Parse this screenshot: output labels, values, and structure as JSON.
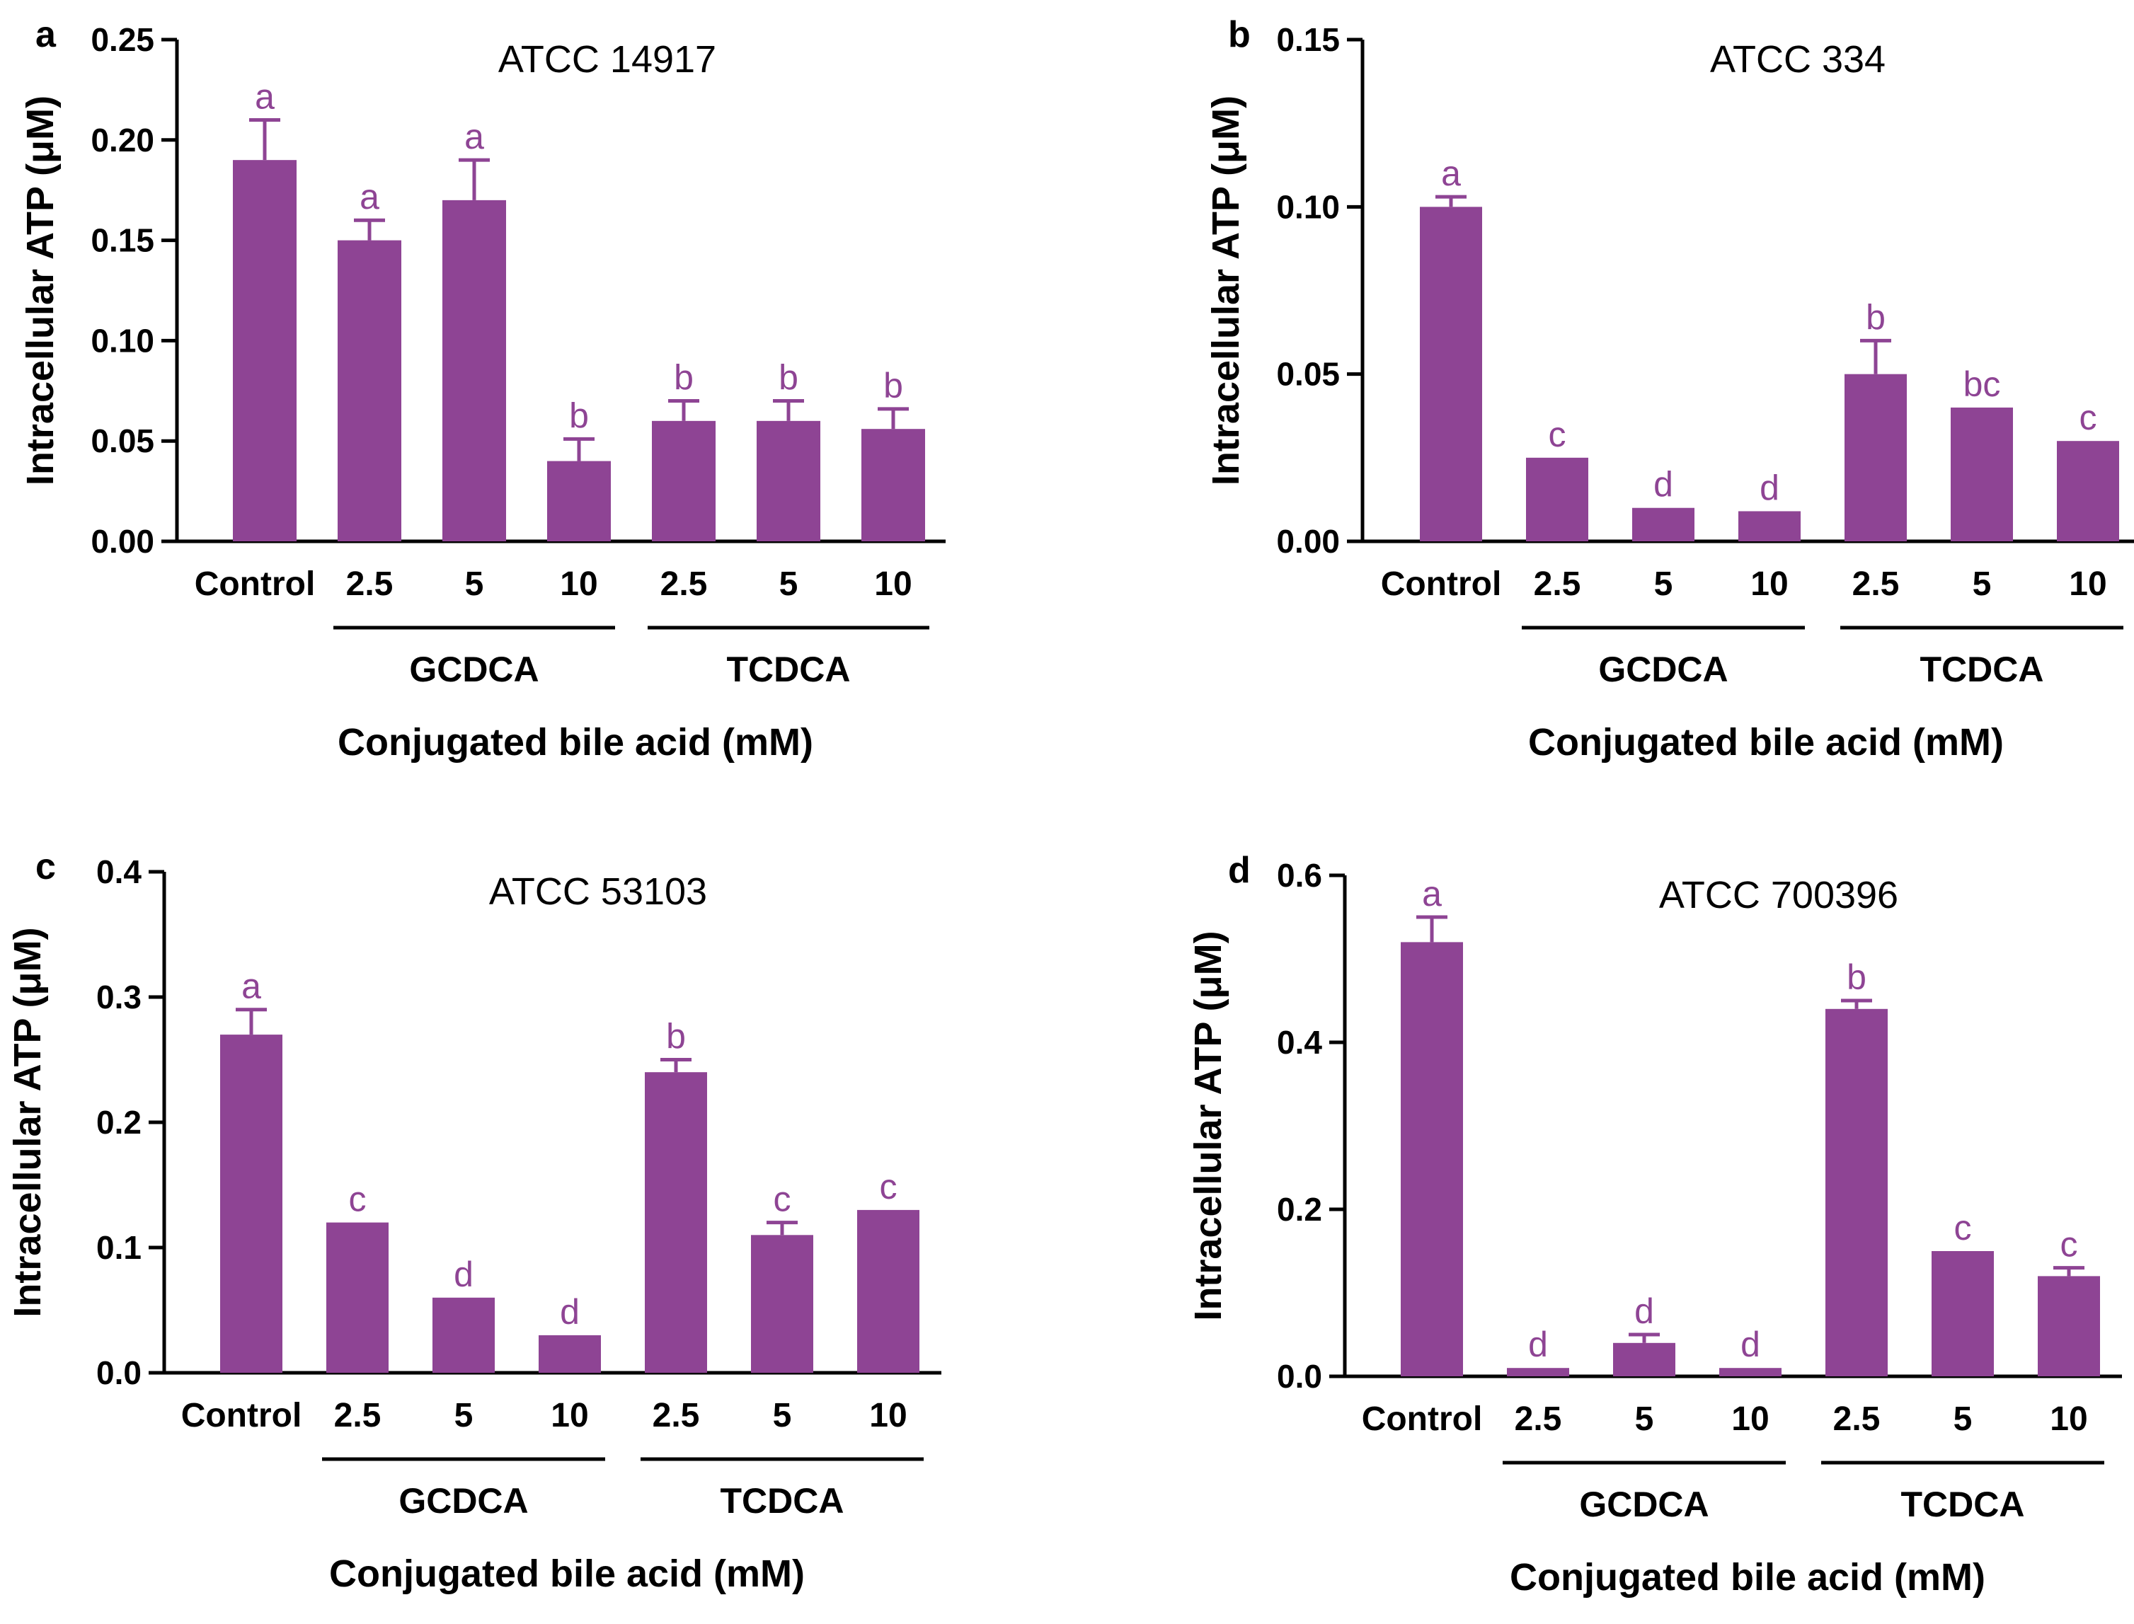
{
  "figure": {
    "bar_color": "#8e4494",
    "letter_color": "#8e4494",
    "axis_color": "#000000"
  },
  "chart_data": [
    {
      "panel": "a",
      "type": "bar",
      "title": "ATCC 14917",
      "ylabel": "Intracellular ATP (μM)",
      "xlabel": "Conjugated bile acid (mM)",
      "categories": [
        "Control",
        "2.5",
        "5",
        "10",
        "2.5",
        "5",
        "10"
      ],
      "groups": [
        {
          "label": "GCDCA",
          "from": 1,
          "to": 3
        },
        {
          "label": "TCDCA",
          "from": 4,
          "to": 6
        }
      ],
      "values": [
        0.19,
        0.15,
        0.17,
        0.04,
        0.06,
        0.06,
        0.056
      ],
      "errors": [
        0.02,
        0.01,
        0.02,
        0.011,
        0.01,
        0.01,
        0.01
      ],
      "letters": [
        "a",
        "a",
        "a",
        "b",
        "b",
        "b",
        "b"
      ],
      "ylim": [
        0,
        0.25
      ],
      "yticks": [
        0.0,
        0.05,
        0.1,
        0.15,
        0.2,
        0.25
      ],
      "ytick_labels": [
        "0.00",
        "0.05",
        "0.10",
        "0.15",
        "0.20",
        "0.25"
      ]
    },
    {
      "panel": "b",
      "type": "bar",
      "title": "ATCC 334",
      "ylabel": "Intracellular ATP (μM)",
      "xlabel": "Conjugated bile acid (mM)",
      "categories": [
        "Control",
        "2.5",
        "5",
        "10",
        "2.5",
        "5",
        "10"
      ],
      "groups": [
        {
          "label": "GCDCA",
          "from": 1,
          "to": 3
        },
        {
          "label": "TCDCA",
          "from": 4,
          "to": 6
        }
      ],
      "values": [
        0.1,
        0.025,
        0.01,
        0.009,
        0.05,
        0.04,
        0.03
      ],
      "errors": [
        0.003,
        0.0,
        0.0,
        0.0,
        0.01,
        0.0,
        0.0
      ],
      "letters": [
        "a",
        "c",
        "d",
        "d",
        "b",
        "bc",
        "c"
      ],
      "ylim": [
        0,
        0.15
      ],
      "yticks": [
        0.0,
        0.05,
        0.1,
        0.15
      ],
      "ytick_labels": [
        "0.00",
        "0.05",
        "0.10",
        "0.15"
      ]
    },
    {
      "panel": "c",
      "type": "bar",
      "title": "ATCC 53103",
      "ylabel": "Intracellular ATP (μM)",
      "xlabel": "Conjugated bile acid (mM)",
      "categories": [
        "Control",
        "2.5",
        "5",
        "10",
        "2.5",
        "5",
        "10"
      ],
      "groups": [
        {
          "label": "GCDCA",
          "from": 1,
          "to": 3
        },
        {
          "label": "TCDCA",
          "from": 4,
          "to": 6
        }
      ],
      "values": [
        0.27,
        0.12,
        0.06,
        0.03,
        0.24,
        0.11,
        0.13
      ],
      "errors": [
        0.02,
        0.0,
        0.0,
        0.0,
        0.01,
        0.01,
        0.0
      ],
      "letters": [
        "a",
        "c",
        "d",
        "d",
        "b",
        "c",
        "c"
      ],
      "ylim": [
        0,
        0.4
      ],
      "yticks": [
        0.0,
        0.1,
        0.2,
        0.3,
        0.4
      ],
      "ytick_labels": [
        "0.0",
        "0.1",
        "0.2",
        "0.3",
        "0.4"
      ]
    },
    {
      "panel": "d",
      "type": "bar",
      "title": "ATCC 700396",
      "ylabel": "Intracellular ATP (μM)",
      "xlabel": "Conjugated bile acid (mM)",
      "categories": [
        "Control",
        "2.5",
        "5",
        "10",
        "2.5",
        "5",
        "10"
      ],
      "groups": [
        {
          "label": "GCDCA",
          "from": 1,
          "to": 3
        },
        {
          "label": "TCDCA",
          "from": 4,
          "to": 6
        }
      ],
      "values": [
        0.52,
        0.01,
        0.04,
        0.01,
        0.44,
        0.15,
        0.12
      ],
      "errors": [
        0.03,
        0.0,
        0.01,
        0.0,
        0.01,
        0.0,
        0.01
      ],
      "letters": [
        "a",
        "d",
        "d",
        "d",
        "b",
        "c",
        "c"
      ],
      "ylim": [
        0,
        0.6
      ],
      "yticks": [
        0.0,
        0.2,
        0.4,
        0.6
      ],
      "ytick_labels": [
        "0.0",
        "0.2",
        "0.4",
        "0.6"
      ]
    }
  ]
}
